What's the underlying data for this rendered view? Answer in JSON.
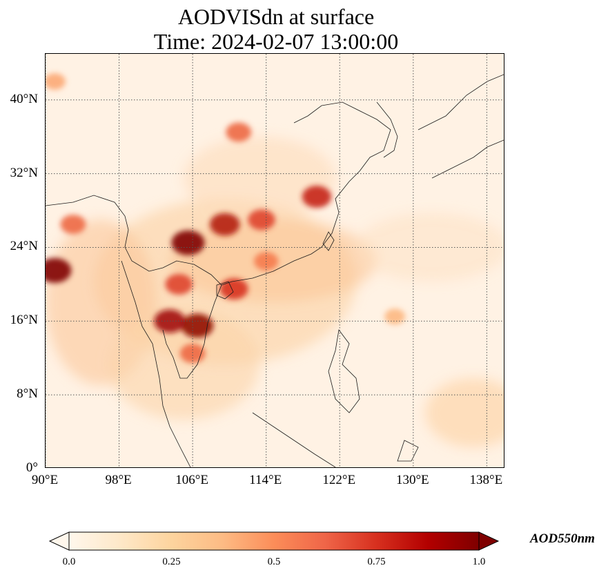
{
  "title": {
    "line1": "AODVISdn at surface",
    "line2": "Time: 2024-02-07 13:00:00"
  },
  "map": {
    "lon_range": [
      90,
      140
    ],
    "lat_range": [
      0,
      45
    ],
    "x_ticks": [
      {
        "lon": 90,
        "label": "90°E"
      },
      {
        "lon": 98,
        "label": "98°E"
      },
      {
        "lon": 106,
        "label": "106°E"
      },
      {
        "lon": 114,
        "label": "114°E"
      },
      {
        "lon": 122,
        "label": "122°E"
      },
      {
        "lon": 130,
        "label": "130°E"
      },
      {
        "lon": 138,
        "label": "138°E"
      }
    ],
    "y_ticks": [
      {
        "lat": 0,
        "label": "0°"
      },
      {
        "lat": 8,
        "label": "8°N"
      },
      {
        "lat": 16,
        "label": "16°N"
      },
      {
        "lat": 24,
        "label": "24°N"
      },
      {
        "lat": 32,
        "label": "32°N"
      },
      {
        "lat": 40,
        "label": "40°N"
      }
    ],
    "gridlines": "dotted",
    "colormap": "OrRd",
    "hotspots": [
      {
        "lon": 105.5,
        "lat": 24.5,
        "aod": 1.0
      },
      {
        "lon": 91.0,
        "lat": 21.5,
        "aod": 1.0
      },
      {
        "lon": 106.5,
        "lat": 15.5,
        "aod": 0.95
      },
      {
        "lon": 103.5,
        "lat": 16.0,
        "aod": 0.9
      },
      {
        "lon": 109.5,
        "lat": 26.5,
        "aod": 0.85
      },
      {
        "lon": 119.5,
        "lat": 29.5,
        "aod": 0.8
      },
      {
        "lon": 110.5,
        "lat": 19.5,
        "aod": 0.75
      },
      {
        "lon": 104.5,
        "lat": 20.0,
        "aod": 0.7
      },
      {
        "lon": 113.5,
        "lat": 27.0,
        "aod": 0.7
      },
      {
        "lon": 111.0,
        "lat": 36.5,
        "aod": 0.6
      },
      {
        "lon": 93.0,
        "lat": 26.5,
        "aod": 0.6
      },
      {
        "lon": 106.0,
        "lat": 12.5,
        "aod": 0.6
      },
      {
        "lon": 114.0,
        "lat": 22.5,
        "aod": 0.55
      },
      {
        "lon": 91.0,
        "lat": 42.0,
        "aod": 0.4
      },
      {
        "lon": 128.0,
        "lat": 16.5,
        "aod": 0.35
      }
    ]
  },
  "colorbar": {
    "label": "AOD550nm",
    "min": 0.0,
    "max": 1.0,
    "extend": "both",
    "ticks": [
      "0.0",
      "0.25",
      "0.5",
      "0.75",
      "1.0"
    ]
  }
}
